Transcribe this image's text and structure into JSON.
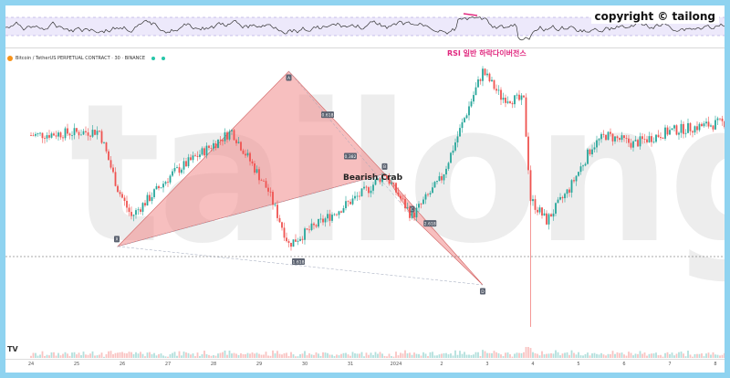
{
  "header": {
    "copyright": "copyright © tailong",
    "symbol": "Bitcoin / TetherUS PERPETUAL CONTRACT · 30 · BINANCE"
  },
  "watermark": "tailong",
  "annotations": {
    "rsi_divergence": "RSI 일반 하락다이버전스",
    "pattern": "Bearish Crab"
  },
  "tv_logo": "TV",
  "colors": {
    "up": "#26a69a",
    "down": "#ef5350",
    "pattern_fill": "#f08a8a",
    "annotation": "#e0297f",
    "rsi_line": "#333333",
    "rsi_band": "#ede9fb"
  },
  "chart_data": {
    "type": "candlestick",
    "x_ticks": [
      "24",
      "25",
      "26",
      "27",
      "28",
      "29",
      "30",
      "31",
      "2024",
      "2",
      "3",
      "4",
      "5",
      "6",
      "7",
      "8"
    ],
    "harmonic_points": [
      {
        "label": "X",
        "x": 1.9,
        "y": 0.18
      },
      {
        "label": "A",
        "x": 5.65,
        "y": 1.0
      },
      {
        "label": "B",
        "x": 7.75,
        "y": 0.52
      },
      {
        "label": "C",
        "x": 8.35,
        "y": 0.32
      },
      {
        "label": "D",
        "x": 9.9,
        "y": 0.0
      }
    ],
    "ratios": [
      {
        "label": "1.618",
        "between": "X-D"
      },
      {
        "label": "0.618",
        "between": "X-A-B"
      },
      {
        "label": "0.382",
        "between": "A-C"
      },
      {
        "label": "2.618",
        "between": "B-D"
      }
    ]
  }
}
